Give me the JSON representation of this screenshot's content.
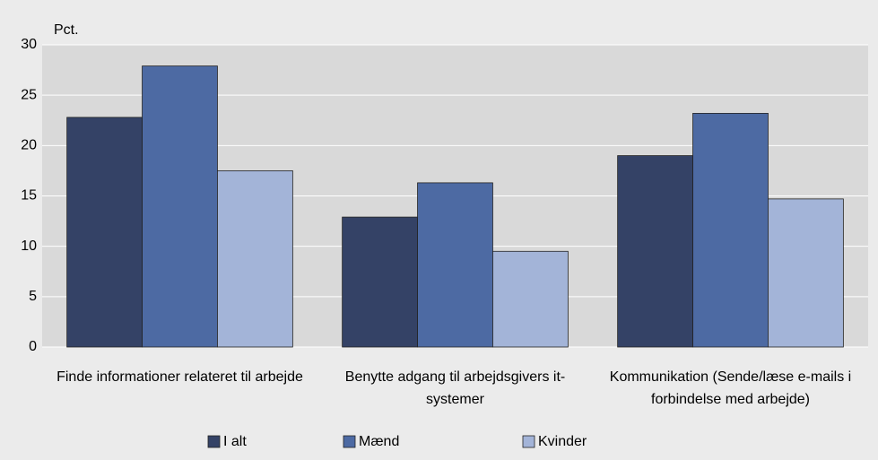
{
  "chart_data": {
    "type": "bar",
    "y_label": "Pct.",
    "categories": [
      "Finde informationer relateret til arbejde",
      "Benytte adgang til arbejdsgivers it-systemer",
      "Kommunikation (Sende/læse e-mails i forbindelse med arbejde)"
    ],
    "series": [
      {
        "name": "I alt",
        "color": "#344266",
        "values": [
          22.8,
          12.9,
          19.0
        ]
      },
      {
        "name": "Mænd",
        "color": "#4d6aa3",
        "values": [
          27.9,
          16.3,
          23.2
        ]
      },
      {
        "name": "Kvinder",
        "color": "#a3b4d8",
        "values": [
          17.5,
          9.5,
          14.7
        ]
      }
    ],
    "ylim": [
      0,
      30
    ],
    "yticks": [
      0,
      5,
      10,
      15,
      20,
      25,
      30
    ],
    "grid": true,
    "legend": "bottom"
  }
}
